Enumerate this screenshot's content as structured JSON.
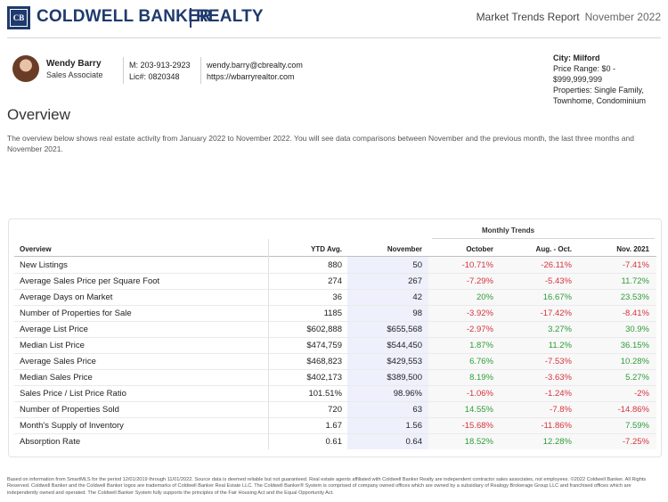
{
  "header": {
    "logo_mark": "CB",
    "brand_name": "COLDWELL BANKER",
    "brand_sub": "REALTY",
    "report_title": "Market Trends Report",
    "report_date": "November 2022"
  },
  "agent": {
    "name": "Wendy Barry",
    "role": "Sales Associate",
    "mobile": "M: 203-913-2923",
    "license": "Lic#: 0820348",
    "email": "wendy.barry@cbrealty.com",
    "website": "https://wbarryrealtor.com"
  },
  "filters": {
    "city": "City: Milford",
    "price_range": "Price Range: $0 - $999,999,999",
    "properties": "Properties: Single Family, Townhome, Condominium"
  },
  "overview": {
    "title": "Overview",
    "intro": "The overview below shows real estate activity from January 2022 to November 2022. You will see data comparisons between November and the previous month, the last three months and November 2021."
  },
  "table": {
    "group_header": "Monthly Trends",
    "columns": [
      "Overview",
      "YTD Avg.",
      "November",
      "October",
      "Aug. - Oct.",
      "Nov. 2021"
    ],
    "rows": [
      {
        "label": "New Listings",
        "ytd": "880",
        "nov": "50",
        "oct": "-10.71%",
        "aug": "-26.11%",
        "y21": "-7.41%"
      },
      {
        "label": "Average Sales Price per Square Foot",
        "ytd": "274",
        "nov": "267",
        "oct": "-7.29%",
        "aug": "-5.43%",
        "y21": "11.72%"
      },
      {
        "label": "Average Days on Market",
        "ytd": "36",
        "nov": "42",
        "oct": "20%",
        "aug": "16.67%",
        "y21": "23.53%"
      },
      {
        "label": "Number of Properties for Sale",
        "ytd": "1185",
        "nov": "98",
        "oct": "-3.92%",
        "aug": "-17.42%",
        "y21": "-8.41%"
      },
      {
        "label": "Average List Price",
        "ytd": "$602,888",
        "nov": "$655,568",
        "oct": "-2.97%",
        "aug": "3.27%",
        "y21": "30.9%"
      },
      {
        "label": "Median List Price",
        "ytd": "$474,759",
        "nov": "$544,450",
        "oct": "1.87%",
        "aug": "11.2%",
        "y21": "36.15%"
      },
      {
        "label": "Average Sales Price",
        "ytd": "$468,823",
        "nov": "$429,553",
        "oct": "6.76%",
        "aug": "-7.53%",
        "y21": "10.28%"
      },
      {
        "label": "Median Sales Price",
        "ytd": "$402,173",
        "nov": "$389,500",
        "oct": "8.19%",
        "aug": "-3.63%",
        "y21": "5.27%"
      },
      {
        "label": "Sales Price / List Price Ratio",
        "ytd": "101.51%",
        "nov": "98.96%",
        "oct": "-1.06%",
        "aug": "-1.24%",
        "y21": "-2%"
      },
      {
        "label": "Number of Properties Sold",
        "ytd": "720",
        "nov": "63",
        "oct": "14.55%",
        "aug": "-7.8%",
        "y21": "-14.86%"
      },
      {
        "label": "Month's Supply of Inventory",
        "ytd": "1.67",
        "nov": "1.56",
        "oct": "-15.68%",
        "aug": "-11.86%",
        "y21": "7.59%"
      },
      {
        "label": "Absorption Rate",
        "ytd": "0.61",
        "nov": "0.64",
        "oct": "18.52%",
        "aug": "12.28%",
        "y21": "-7.25%"
      }
    ]
  },
  "footer": {
    "disclaimer": "Based on information from SmartMLS for the period 12/01/2019 through 11/01/2022. Source data is deemed reliable but not guaranteed. Real estate agents affiliated with Coldwell Banker Realty are independent contractor sales associates, not employees. ©2022 Coldwell Banker. All Rights Reserved. Coldwell Banker and the Coldwell Banker logos are trademarks of Coldwell Banker Real Estate LLC. The Coldwell Banker® System is comprised of company owned offices which are owned by a subsidiary of Realogy Brokerage Group LLC and franchised offices which are independently owned and operated. The Coldwell Banker System fully supports the principles of the Fair Housing Act and the Equal Opportunity Act."
  },
  "colors": {
    "brand": "#1f3a6d",
    "positive": "#2e9d3a",
    "negative": "#d6343f",
    "november_shade": "#eef0fb"
  }
}
